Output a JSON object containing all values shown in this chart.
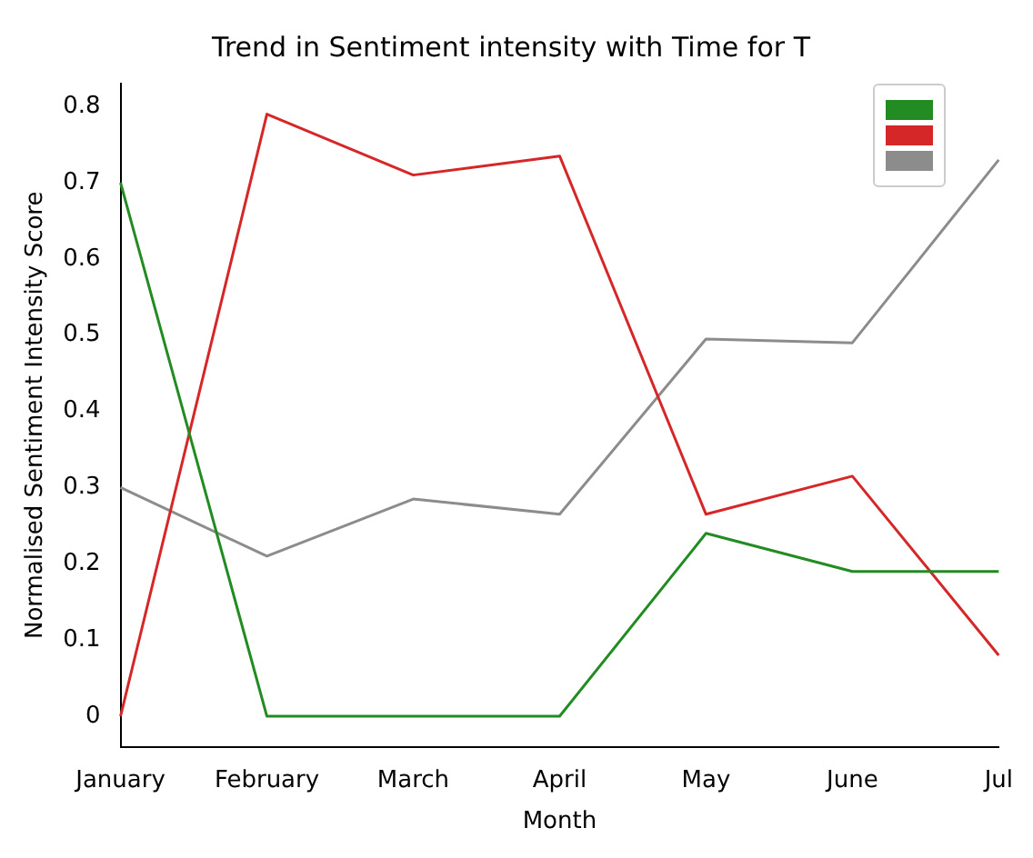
{
  "chart_data": {
    "type": "line",
    "title": "Trend in Sentiment intensity with Time for T",
    "xlabel": "Month",
    "ylabel": "Normalised Sentiment Intensity Score",
    "categories": [
      "January",
      "February",
      "March",
      "April",
      "May",
      "June",
      "Jul"
    ],
    "series": [
      {
        "color": "#228b22",
        "values": [
          0.7,
          0,
          0,
          0,
          0.24,
          0.19,
          0.19
        ]
      },
      {
        "color": "#d62728",
        "values": [
          0,
          0.79,
          0.71,
          0.735,
          0.265,
          0.315,
          0.08
        ]
      },
      {
        "color": "#8c8c8c",
        "values": [
          0.3,
          0.21,
          0.285,
          0.265,
          0.495,
          0.49,
          0.73
        ]
      }
    ],
    "ylim": [
      -0.04,
      0.83
    ],
    "yticks": [
      0,
      0.1,
      0.2,
      0.3,
      0.4,
      0.5,
      0.6,
      0.7,
      0.8
    ],
    "grid": false,
    "marker": "none",
    "line_style": "solid"
  }
}
